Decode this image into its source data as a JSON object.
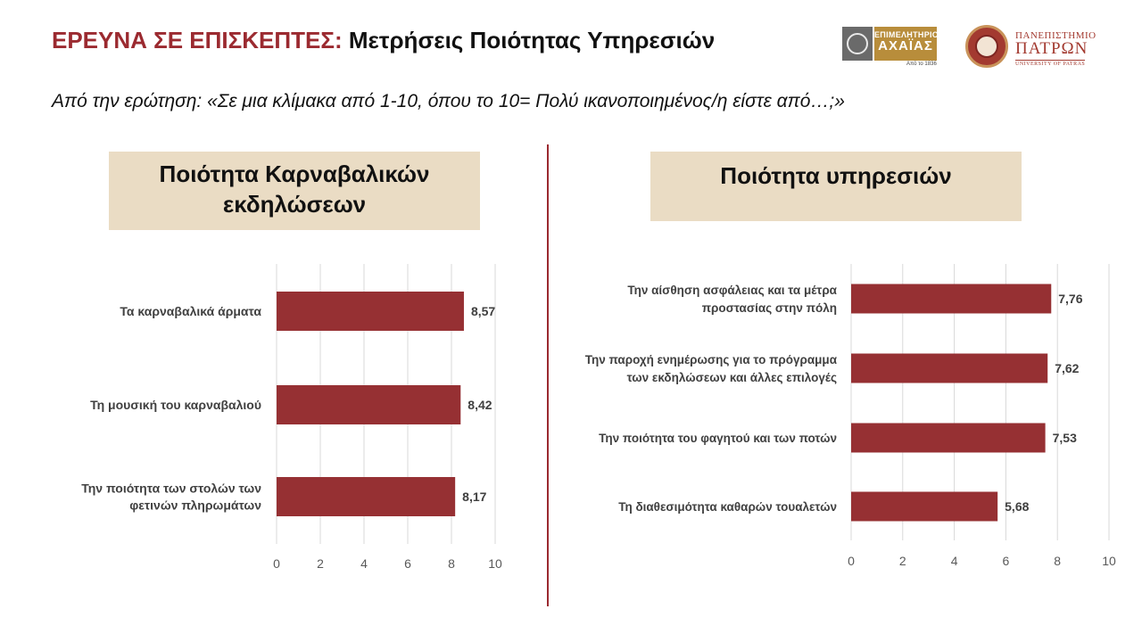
{
  "header": {
    "title_accent": "ΕΡΕΥΝΑ ΣΕ ΕΠΙΣΚΕΠΤΕΣ:",
    "title_rest": "Μετρήσεις Ποιότητας Υπηρεσιών",
    "subtitle": "Από την ερώτηση: «Σε μια κλίμακα από 1-10, όπου το 10= Πολύ ικανοποιημένος/η είστε από…;»"
  },
  "logos": {
    "epimelitirio": {
      "line1": "ΕΠΙΜΕΛΗΤΗΡΙΟ",
      "line2": "ΑΧΑΪΑΣ",
      "since": "Από το 1836"
    },
    "upatras": {
      "line1": "ΠΑΝΕΠΙΣΤΗΜΙΟ",
      "line2": "ΠΑΤΡΩΝ",
      "line3": "UNIVERSITY OF PATRAS"
    }
  },
  "colors": {
    "accent": "#9b2a30",
    "bar": "#963033",
    "header_bg": "#eadcc4",
    "grid": "#d9d9d9",
    "tick_text": "#595959",
    "label_text": "#404040"
  },
  "chart_data": [
    {
      "type": "bar",
      "orientation": "horizontal",
      "title": "Ποιότητα Καρναβαλικών εκδηλώσεων",
      "categories": [
        "Τα καρναβαλικά άρματα",
        "Τη μουσική του καρναβαλιού",
        "Την ποιότητα των στολών των φετινών πληρωμάτων"
      ],
      "values": [
        8.57,
        8.42,
        8.17
      ],
      "value_labels": [
        "8,57",
        "8,42",
        "8,17"
      ],
      "xlim": [
        0,
        10
      ],
      "xticks": [
        0,
        2,
        4,
        6,
        8,
        10
      ],
      "grid": true
    },
    {
      "type": "bar",
      "orientation": "horizontal",
      "title": "Ποιότητα υπηρεσιών",
      "categories": [
        "Την αίσθηση ασφάλειας και τα μέτρα προστασίας στην πόλη",
        "Την παροχή ενημέρωσης για το πρόγραμμα των εκδηλώσεων και άλλες επιλογές",
        "Την ποιότητα του φαγητού και των ποτών",
        "Τη διαθεσιμότητα καθαρών τουαλετών"
      ],
      "values": [
        7.76,
        7.62,
        7.53,
        5.68
      ],
      "value_labels": [
        "7,76",
        "7,62",
        "7,53",
        "5,68"
      ],
      "xlim": [
        0,
        10
      ],
      "xticks": [
        0,
        2,
        4,
        6,
        8,
        10
      ],
      "grid": true
    }
  ]
}
